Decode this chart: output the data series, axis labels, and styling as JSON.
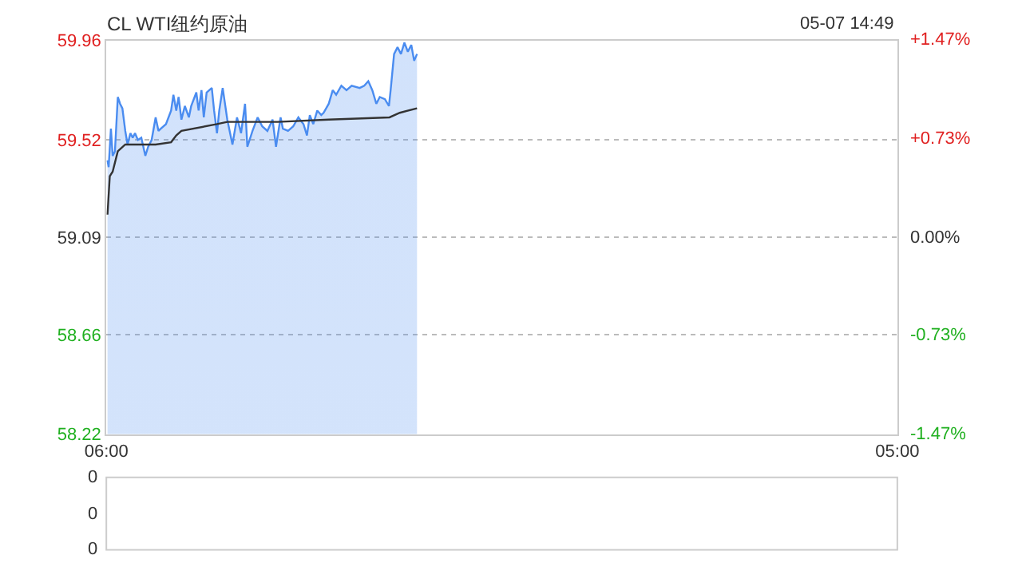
{
  "chart_data": [
    {
      "type": "line",
      "title": "CL WTI纽约原油",
      "annotations": [
        "05-07 14:49"
      ],
      "xlim": [
        "--05-07T06:00",
        "--05-08T05:00"
      ],
      "xticks": [
        {
          "value": "--05-07T06:00",
          "label": "06:00"
        },
        {
          "value": "--05-08T05:00",
          "label": "05:00"
        }
      ],
      "ylim": [
        58.22,
        59.96
      ],
      "yticks": [
        58.22,
        58.66,
        59.09,
        59.52,
        59.96
      ],
      "y2lim": [
        -1.47,
        1.47
      ],
      "y2ticks": [
        {
          "value": -1.47,
          "label": "-1.47%"
        },
        {
          "value": -0.73,
          "label": "-0.73%"
        },
        {
          "value": 0,
          "label": "0.00%"
        },
        {
          "value": 0.73,
          "label": "+0.73%"
        },
        {
          "value": 1.47,
          "label": "+1.47%"
        }
      ],
      "grid": "y",
      "marker": "none",
      "line_style": "solid",
      "series": [
        {
          "type": "area",
          "color": "#4a8cf0",
          "x": [
            "--05-07T06:02",
            "--05-07T06:04",
            "--05-07T06:08",
            "--05-07T06:11",
            "--05-07T06:15",
            "--05-07T06:20",
            "--05-07T06:24",
            "--05-07T06:28",
            "--05-07T06:33",
            "--05-07T06:37",
            "--05-07T06:42",
            "--05-07T06:46",
            "--05-07T06:50",
            "--05-07T06:55",
            "--05-07T07:01",
            "--05-07T07:08",
            "--05-07T07:13",
            "--05-07T07:19",
            "--05-07T07:26",
            "--05-07T07:31",
            "--05-07T07:35",
            "--05-07T07:44",
            "--05-07T07:53",
            "--05-07T07:57",
            "--05-07T08:02",
            "--05-07T08:06",
            "--05-07T08:11",
            "--05-07T08:17",
            "--05-07T08:24",
            "--05-07T08:28",
            "--05-07T08:37",
            "--05-07T08:41",
            "--05-07T08:46",
            "--05-07T08:50",
            "--05-07T08:55",
            "--05-07T09:04",
            "--05-07T09:08",
            "--05-07T09:13",
            "--05-07T09:17",
            "--05-07T09:23",
            "--05-07T09:31",
            "--05-07T09:40",
            "--05-07T09:48",
            "--05-07T09:55",
            "--05-07T10:02",
            "--05-07T10:06",
            "--05-07T10:15",
            "--05-07T10:24",
            "--05-07T10:32",
            "--05-07T10:41",
            "--05-07T10:50",
            "--05-07T10:56",
            "--05-07T11:04",
            "--05-07T11:08",
            "--05-07T11:17",
            "--05-07T11:26",
            "--05-07T11:35",
            "--05-07T11:44",
            "--05-07T11:50",
            "--05-07T11:55",
            "--05-07T12:01",
            "--05-07T12:08",
            "--05-07T12:15",
            "--05-07T12:19",
            "--05-07T12:28",
            "--05-07T12:35",
            "--05-07T12:41",
            "--05-07T12:50",
            "--05-07T12:59",
            "--05-07T13:08",
            "--05-07T13:22",
            "--05-07T13:30",
            "--05-07T13:37",
            "--05-07T13:44",
            "--05-07T13:51",
            "--05-07T13:57",
            "--05-07T14:06",
            "--05-07T14:13",
            "--05-07T14:16",
            "--05-07T14:22",
            "--05-07T14:28",
            "--05-07T14:34",
            "--05-07T14:40",
            "--05-07T14:46",
            "--05-07T14:52",
            "--05-07T14:57",
            "--05-07T15:02"
          ],
          "values": [
            59.43,
            59.4,
            59.57,
            59.45,
            59.47,
            59.71,
            59.68,
            59.66,
            59.56,
            59.5,
            59.55,
            59.53,
            59.55,
            59.52,
            59.53,
            59.45,
            59.49,
            59.52,
            59.62,
            59.56,
            59.57,
            59.59,
            59.65,
            59.72,
            59.65,
            59.71,
            59.61,
            59.67,
            59.62,
            59.67,
            59.73,
            59.65,
            59.74,
            59.62,
            59.73,
            59.75,
            59.65,
            59.55,
            59.65,
            59.75,
            59.61,
            59.5,
            59.62,
            59.55,
            59.68,
            59.49,
            59.56,
            59.62,
            59.58,
            59.56,
            59.61,
            59.49,
            59.62,
            59.57,
            59.56,
            59.58,
            59.62,
            59.59,
            59.54,
            59.63,
            59.59,
            59.65,
            59.63,
            59.64,
            59.68,
            59.74,
            59.72,
            59.76,
            59.74,
            59.76,
            59.75,
            59.76,
            59.78,
            59.74,
            59.68,
            59.71,
            59.7,
            59.67,
            59.74,
            59.9,
            59.93,
            59.9,
            59.95,
            59.91,
            59.94,
            59.87,
            59.9
          ]
        },
        {
          "type": "line",
          "color": "#333333",
          "x": [
            "--05-07T06:02",
            "--05-07T06:06",
            "--05-07T06:11",
            "--05-07T06:20",
            "--05-07T06:33",
            "--05-07T07:26",
            "--05-07T07:53",
            "--05-07T08:02",
            "--05-07T08:11",
            "--05-07T09:13",
            "--05-07T09:31",
            "--05-07T10:59",
            "--05-07T12:28",
            "--05-07T14:14",
            "--05-07T14:32",
            "--05-07T15:02"
          ],
          "values": [
            59.19,
            59.36,
            59.38,
            59.47,
            59.5,
            59.5,
            59.51,
            59.54,
            59.56,
            59.59,
            59.6,
            59.6,
            59.61,
            59.62,
            59.64,
            59.66
          ]
        }
      ]
    },
    {
      "type": "other",
      "annotations": [
        "0",
        "0",
        "0"
      ]
    }
  ]
}
